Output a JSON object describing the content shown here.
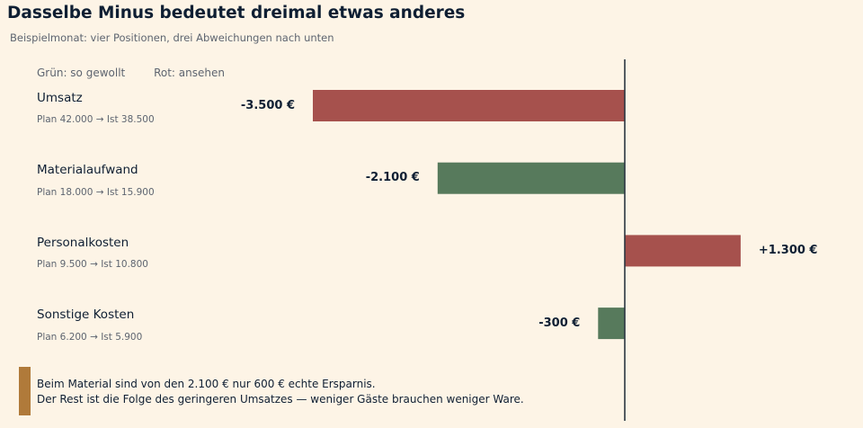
{
  "title": "Dasselbe Minus bedeutet dreimal etwas anderes",
  "subtitle": "Beispielmonat: vier Positionen, drei Abweichungen nach unten",
  "legend": {
    "good": "Grün: so gewollt",
    "bad": "Rot: ansehen"
  },
  "colors": {
    "good": "#577a5c",
    "bad": "#a6514d",
    "accent": "#b07a3a",
    "axis": "#2a3540"
  },
  "chart_data": {
    "type": "bar",
    "orientation": "horizontal",
    "title": "Dasselbe Minus bedeutet dreimal etwas anderes",
    "subtitle": "Beispielmonat: vier Positionen, drei Abweichungen nach unten",
    "categories": [
      "Umsatz",
      "Materialaufwand",
      "Personalkosten",
      "Sonstige Kosten"
    ],
    "details": [
      "Plan 42.000 → Ist 38.500",
      "Plan 18.000 → Ist 15.900",
      "Plan 9.500 → Ist 10.800",
      "Plan 6.200 → Ist 5.900"
    ],
    "values": [
      -3500,
      -2100,
      1300,
      -300
    ],
    "value_labels": [
      "-3.500 €",
      "-2.100 €",
      "+1.300 €",
      "-300 €"
    ],
    "assessment": [
      "bad",
      "good",
      "bad",
      "good"
    ],
    "xlim": [
      -3500,
      2150
    ],
    "grid": false,
    "legend_position": "top-left"
  },
  "note": {
    "line1": "Beim Material sind von den 2.100 € nur 600 € echte Ersparnis.",
    "line2": "Der Rest ist die Folge des geringeren Umsatzes — weniger Gäste brauchen weniger Ware."
  }
}
